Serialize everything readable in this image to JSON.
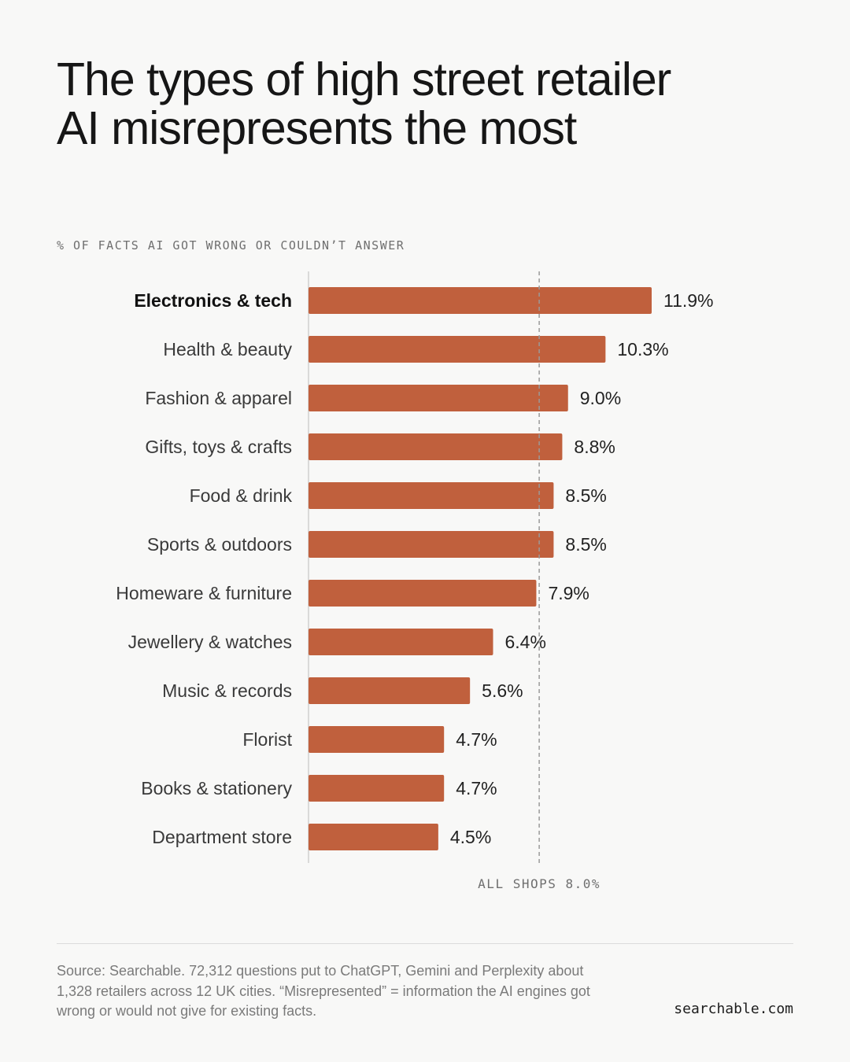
{
  "chart_data": {
    "type": "bar",
    "orientation": "horizontal",
    "title_line1": "The types of high street retailer",
    "title_line2": "AI misrepresents the most",
    "ylabel": "% OF FACTS AI GOT WRONG OR COULDN’T ANSWER",
    "categories": [
      "Electronics & tech",
      "Health & beauty",
      "Fashion & apparel",
      "Gifts, toys & crafts",
      "Food & drink",
      "Sports & outdoors",
      "Homeware & furniture",
      "Jewellery & watches",
      "Music & records",
      "Florist",
      "Books & stationery",
      "Department store"
    ],
    "values": [
      11.9,
      10.3,
      9.0,
      8.8,
      8.5,
      8.5,
      7.9,
      6.4,
      5.6,
      4.7,
      4.7,
      4.5
    ],
    "value_labels": [
      "11.9%",
      "10.3%",
      "9.0%",
      "8.8%",
      "8.5%",
      "8.5%",
      "7.9%",
      "6.4%",
      "5.6%",
      "4.7%",
      "4.7%",
      "4.5%"
    ],
    "highlight_category": "Electronics & tech",
    "reference_line": {
      "value": 8.0,
      "label": "ALL SHOPS 8.0%"
    },
    "xlim": [
      0,
      11.9
    ],
    "grid": false,
    "bar_color": "#c0603d"
  },
  "footer": {
    "source_line1": "Source: Searchable. 72,312 questions put to ChatGPT, Gemini and Perplexity about",
    "source_line2": "1,328 retailers across 12 UK cities. “Misrepresented” = information the AI engines got",
    "source_line3": "wrong or would not give for existing facts.",
    "brand": "searchable.com"
  },
  "colors": {
    "background": "#f8f8f7",
    "bar": "#c0603d",
    "text": "#1d1d1d",
    "muted": "#6f6f6f",
    "axis": "#cfcfcf",
    "reference_line": "#9a9a9a"
  }
}
